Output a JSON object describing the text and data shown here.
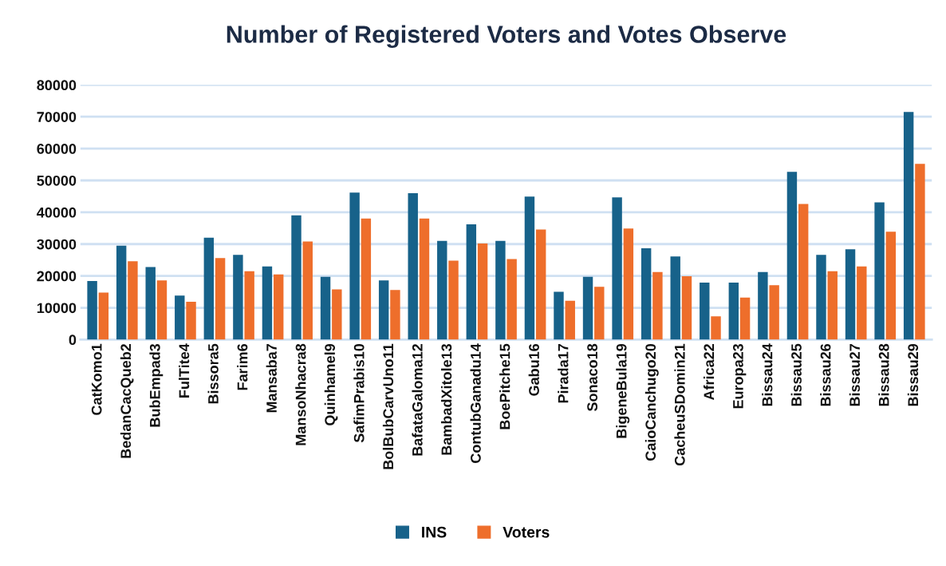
{
  "chart_data": {
    "type": "bar",
    "title": "Number of Registered Voters and Votes Observe",
    "categories": [
      "CatKomo1",
      "BedanCacQueb2",
      "BubEmpad3",
      "FulTite4",
      "Bissora5",
      "Farim6",
      "Mansaba7",
      "MansoNhacra8",
      "Quinhamel9",
      "SafimPrabis10",
      "BolBubCarvUno11",
      "BafataGaloma12",
      "BambadXitole13",
      "ContubGanadu14",
      "BoePitche15",
      "Gabu16",
      "Pirada17",
      "Sonaco18",
      "BigeneBula19",
      "CaioCanchugo20",
      "CacheuSDomin21",
      "Africa22",
      "Europa23",
      "Bissau24",
      "Bissau25",
      "Bissau26",
      "Bissau27",
      "Bissau28",
      "Bissau29"
    ],
    "series": [
      {
        "name": "INS",
        "color": "#17628a",
        "values": [
          18400,
          29500,
          22800,
          13800,
          32000,
          26600,
          23000,
          39000,
          19700,
          46200,
          18600,
          46000,
          31000,
          36200,
          31000,
          44900,
          15000,
          19700,
          44700,
          28700,
          26100,
          17900,
          17900,
          21200,
          52700,
          26600,
          28400,
          43100,
          71500
        ]
      },
      {
        "name": "Voters",
        "color": "#ee6e2b",
        "values": [
          14800,
          24600,
          18600,
          11900,
          25600,
          21500,
          20500,
          30800,
          15800,
          38000,
          15600,
          38000,
          24800,
          30200,
          25300,
          34600,
          12200,
          16600,
          34900,
          21200,
          19900,
          7300,
          13200,
          17100,
          42600,
          21500,
          23000,
          33900,
          55200
        ]
      }
    ],
    "ylim": [
      0,
      80000
    ],
    "yticks": [
      0,
      10000,
      20000,
      30000,
      40000,
      50000,
      60000,
      70000,
      80000
    ],
    "grid": "y",
    "legend": "bottom"
  }
}
